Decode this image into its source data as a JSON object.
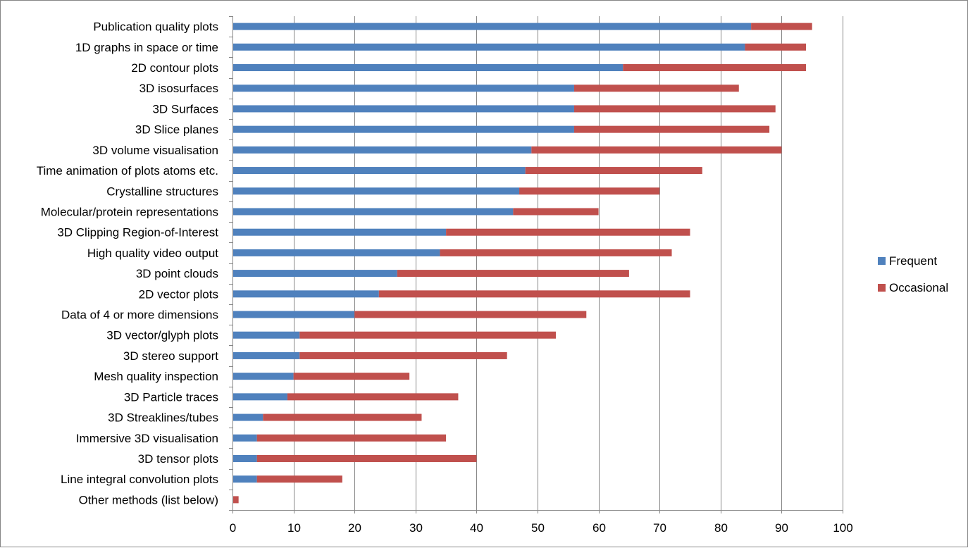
{
  "chart_data": {
    "type": "bar",
    "orientation": "horizontal",
    "stacked": true,
    "categories": [
      "Publication quality plots",
      "1D graphs in space or time",
      "2D contour plots",
      "3D isosurfaces",
      "3D Surfaces",
      "3D Slice planes",
      "3D volume visualisation",
      "Time animation of plots atoms etc.",
      "Crystalline structures",
      "Molecular/protein representations",
      "3D Clipping Region-of-Interest",
      "High quality video output",
      "3D point clouds",
      "2D vector plots",
      "Data of 4 or more dimensions",
      "3D vector/glyph plots",
      "3D stereo support",
      "Mesh quality inspection",
      "3D Particle traces",
      "3D Streaklines/tubes",
      "Immersive 3D visualisation",
      "3D tensor plots",
      "Line integral convolution plots",
      "Other methods (list below)"
    ],
    "series": [
      {
        "name": "Frequent",
        "color": "#4F81BD",
        "values": [
          85,
          84,
          64,
          56,
          56,
          56,
          49,
          48,
          47,
          46,
          35,
          34,
          27,
          24,
          20,
          11,
          11,
          10,
          9,
          5,
          4,
          4,
          4,
          0
        ]
      },
      {
        "name": "Occasional",
        "color": "#C0504D",
        "values": [
          10,
          10,
          30,
          27,
          33,
          32,
          41,
          29,
          23,
          14,
          40,
          38,
          38,
          51,
          38,
          42,
          34,
          19,
          28,
          26,
          31,
          36,
          14,
          1
        ]
      }
    ],
    "xlim": [
      0,
      100
    ],
    "xticks": [
      "0",
      "10",
      "20",
      "30",
      "40",
      "50",
      "60",
      "70",
      "80",
      "90",
      "100"
    ],
    "grid": true,
    "legend_position": "right",
    "title": "",
    "xlabel": "",
    "ylabel": ""
  }
}
